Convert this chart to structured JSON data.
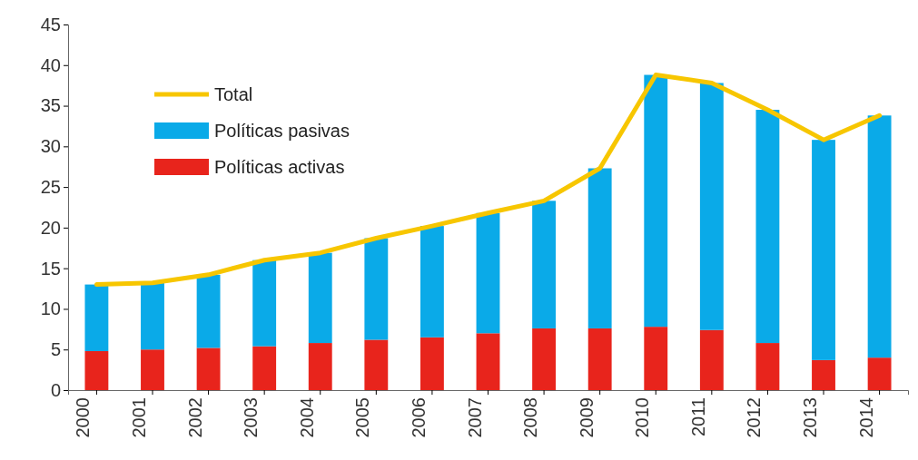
{
  "chart_data": {
    "type": "bar",
    "stacked": true,
    "legend": "top left",
    "categories": [
      "2000",
      "2001",
      "2002",
      "2003",
      "2004",
      "2005",
      "2006",
      "2007",
      "2008",
      "2009",
      "2010",
      "2011",
      "2012",
      "2013",
      "2014"
    ],
    "series": [
      {
        "name": "Políticas activas",
        "color": "#e8241c",
        "values": [
          4.8,
          5.0,
          5.2,
          5.4,
          5.8,
          6.2,
          6.5,
          7.0,
          7.6,
          7.6,
          7.8,
          7.4,
          5.8,
          3.7,
          4.0
        ]
      },
      {
        "name": "Políticas pasivas",
        "color": "#0aaae8",
        "values": [
          8.2,
          8.2,
          9.0,
          10.6,
          11.1,
          12.5,
          13.7,
          14.8,
          15.7,
          19.7,
          31.0,
          30.4,
          28.7,
          27.1,
          29.8
        ]
      },
      {
        "name": "Total",
        "type": "line",
        "color": "#f7c600",
        "values": [
          13.0,
          13.2,
          14.2,
          16.0,
          16.9,
          18.7,
          20.2,
          21.8,
          23.3,
          27.3,
          38.8,
          37.8,
          34.5,
          30.8,
          33.8
        ]
      }
    ],
    "ylim": [
      0,
      45
    ],
    "yticks": [
      0,
      5,
      10,
      15,
      20,
      25,
      30,
      35,
      40,
      45
    ]
  }
}
